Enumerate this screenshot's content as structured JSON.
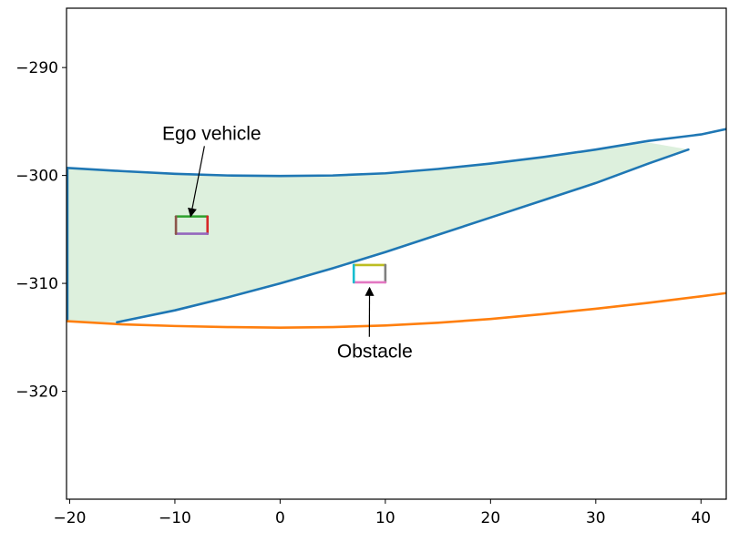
{
  "chart_data": {
    "type": "line",
    "title": "",
    "xlabel": "",
    "ylabel": "",
    "xlim": [
      -20.3,
      42.4
    ],
    "ylim": [
      -330,
      -284.5
    ],
    "xticks": [
      -20,
      -10,
      0,
      10,
      20,
      30,
      40
    ],
    "yticks": [
      -290,
      -300,
      -310,
      -320
    ],
    "xtick_labels": [
      "−20",
      "−10",
      "0",
      "10",
      "20",
      "30",
      "40"
    ],
    "ytick_labels": [
      "−290",
      "−300",
      "−310",
      "−320"
    ],
    "grid": false,
    "legend": "none",
    "series": [
      {
        "color": "#1f77b4",
        "points": [
          [
            -20.3,
            -299.3
          ],
          [
            -15,
            -299.6
          ],
          [
            -10,
            -299.85
          ],
          [
            -5,
            -300.0
          ],
          [
            0,
            -300.05
          ],
          [
            5,
            -300.0
          ],
          [
            10,
            -299.8
          ],
          [
            15,
            -299.4
          ],
          [
            20,
            -298.9
          ],
          [
            25,
            -298.3
          ],
          [
            30,
            -297.6
          ],
          [
            35,
            -296.8
          ],
          [
            40,
            -296.2
          ],
          [
            42.4,
            -295.7
          ]
        ]
      },
      {
        "color": "#ff7f0e",
        "points": [
          [
            -20.3,
            -313.5
          ],
          [
            -15,
            -313.8
          ],
          [
            -10,
            -313.95
          ],
          [
            -5,
            -314.05
          ],
          [
            0,
            -314.1
          ],
          [
            5,
            -314.05
          ],
          [
            10,
            -313.9
          ],
          [
            15,
            -313.65
          ],
          [
            20,
            -313.3
          ],
          [
            25,
            -312.85
          ],
          [
            30,
            -312.35
          ],
          [
            35,
            -311.8
          ],
          [
            40,
            -311.2
          ],
          [
            42.4,
            -310.9
          ]
        ]
      },
      {
        "color": "#1f77b4",
        "points": [
          [
            -15.5,
            -313.6
          ],
          [
            -10,
            -312.5
          ],
          [
            -5,
            -311.3
          ],
          [
            0,
            -310.0
          ],
          [
            5,
            -308.6
          ],
          [
            10,
            -307.1
          ],
          [
            15,
            -305.5
          ],
          [
            20,
            -303.9
          ],
          [
            25,
            -302.3
          ],
          [
            30,
            -300.7
          ],
          [
            35,
            -298.9
          ],
          [
            38.8,
            -297.6
          ]
        ]
      }
    ],
    "drivable_area": {
      "color": "#2ca02c",
      "opacity": 0.16,
      "polygon": [
        [
          -20.2,
          -299.3
        ],
        [
          -15,
          -299.6
        ],
        [
          -10,
          -299.85
        ],
        [
          -5,
          -300.0
        ],
        [
          0,
          -300.05
        ],
        [
          5,
          -300.0
        ],
        [
          10,
          -299.8
        ],
        [
          15,
          -299.4
        ],
        [
          20,
          -298.9
        ],
        [
          25,
          -298.3
        ],
        [
          30,
          -297.6
        ],
        [
          35,
          -296.95
        ],
        [
          38.8,
          -297.6
        ],
        [
          35,
          -298.9
        ],
        [
          30,
          -300.7
        ],
        [
          25,
          -302.3
        ],
        [
          20,
          -303.9
        ],
        [
          15,
          -305.5
        ],
        [
          10,
          -307.1
        ],
        [
          5,
          -308.6
        ],
        [
          0,
          -310.0
        ],
        [
          -5,
          -311.3
        ],
        [
          -10,
          -312.5
        ],
        [
          -15.5,
          -313.6
        ],
        [
          -20.2,
          -313.5
        ]
      ]
    },
    "vehicles": [
      {
        "name": "ego",
        "x_range": [
          -9.9,
          -6.9
        ],
        "y_range": [
          -305.4,
          -303.8
        ],
        "edge_colors": {
          "top": "#2ca02c",
          "right": "#d62728",
          "bottom": "#9467bd",
          "left": "#8c564b"
        }
      },
      {
        "name": "obstacle",
        "x_range": [
          7.0,
          10.0
        ],
        "y_range": [
          -309.9,
          -308.3
        ],
        "edge_colors": {
          "top": "#bcbd22",
          "right": "#7f7f7f",
          "bottom": "#e377c2",
          "left": "#17becf"
        }
      }
    ],
    "annotations": [
      {
        "text": "Ego vehicle",
        "text_xy": [
          -6.5,
          -296.1
        ],
        "arrow_to": [
          -8.5,
          -303.8
        ]
      },
      {
        "text": "Obstacle",
        "text_xy": [
          9.0,
          -316.3
        ],
        "arrow_to": [
          8.5,
          -310.4
        ]
      }
    ]
  }
}
